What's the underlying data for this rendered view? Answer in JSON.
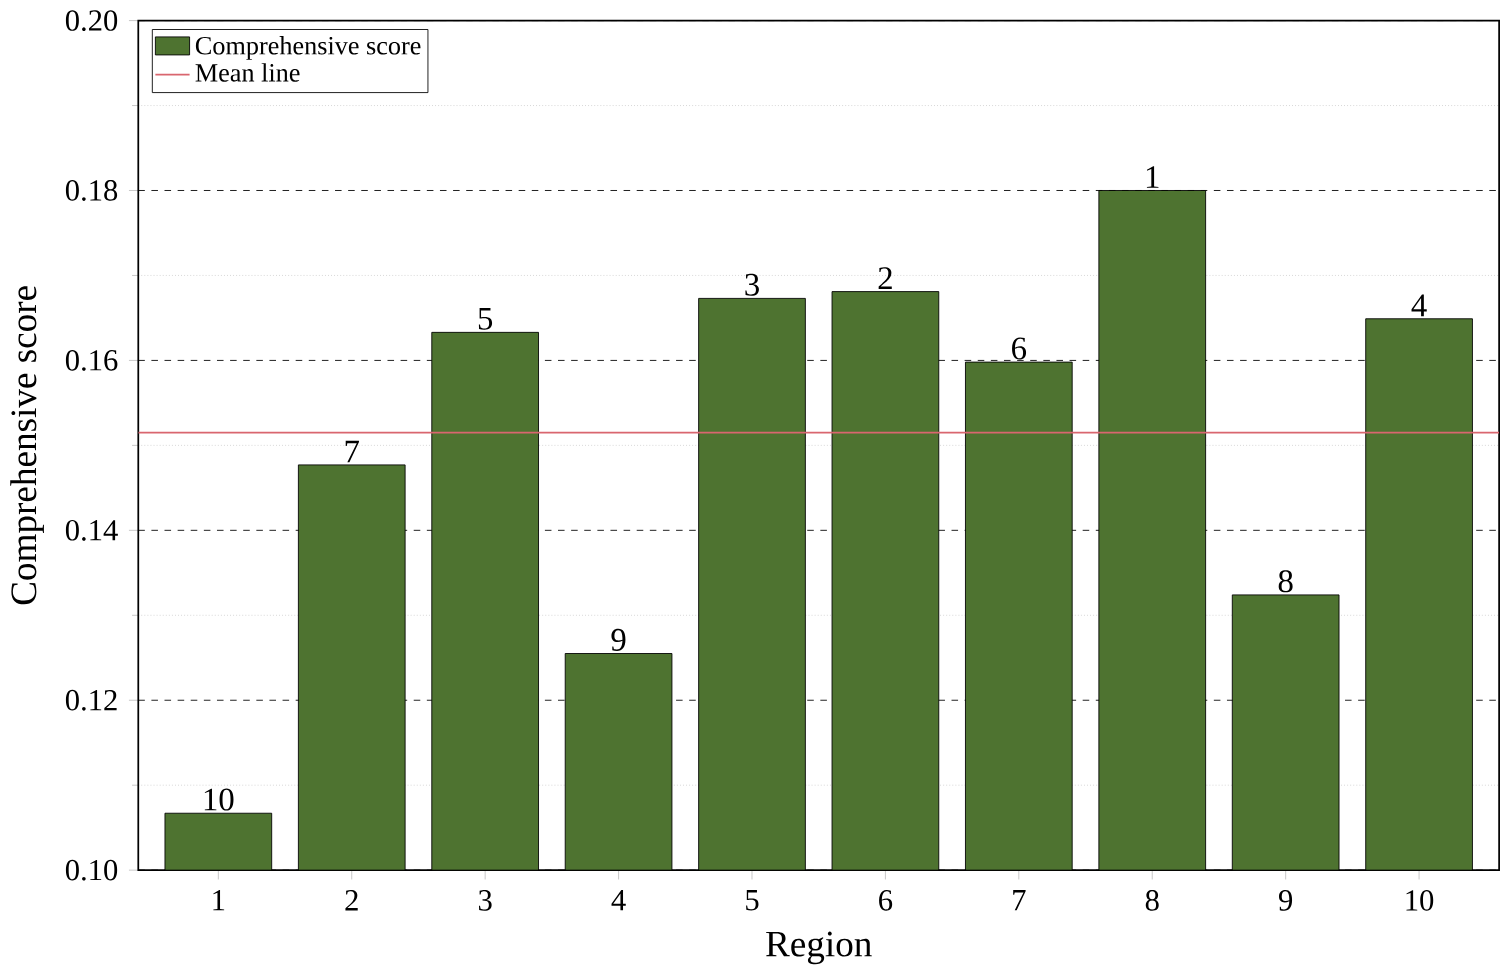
{
  "chart_data": {
    "type": "bar",
    "xlabel": "Region",
    "ylabel": "Comprehensive score",
    "categories": [
      "1",
      "2",
      "3",
      "4",
      "5",
      "6",
      "7",
      "8",
      "9",
      "10"
    ],
    "series": [
      {
        "name": "Comprehensive score",
        "color": "#4e7330",
        "values": [
          0.1067,
          0.1477,
          0.1633,
          0.1255,
          0.1673,
          0.1681,
          0.1598,
          0.18,
          0.1324,
          0.1649
        ]
      }
    ],
    "annotations": [
      {
        "text": "10",
        "x": "1",
        "y": 0.1067
      },
      {
        "text": "7",
        "x": "2",
        "y": 0.1477
      },
      {
        "text": "5",
        "x": "3",
        "y": 0.1633
      },
      {
        "text": "9",
        "x": "4",
        "y": 0.1255
      },
      {
        "text": "3",
        "x": "5",
        "y": 0.1673
      },
      {
        "text": "2",
        "x": "6",
        "y": 0.1681
      },
      {
        "text": "6",
        "x": "7",
        "y": 0.1598
      },
      {
        "text": "1",
        "x": "8",
        "y": 0.18
      },
      {
        "text": "8",
        "x": "9",
        "y": 0.1324
      },
      {
        "text": "4",
        "x": "10",
        "y": 0.1649
      }
    ],
    "ref_lines": [
      {
        "axis": "y",
        "value": 0.1515,
        "label": "Mean line",
        "color": "#d9666f",
        "line_style": "solid"
      }
    ],
    "ylim": [
      0.1,
      0.2
    ],
    "yticks": [
      {
        "value": 0.1,
        "label": "0.10"
      },
      0.12,
      0.14,
      0.16,
      0.18,
      {
        "value": 0.2,
        "label": "0.20"
      }
    ],
    "grid": "y",
    "legend": "top left"
  }
}
